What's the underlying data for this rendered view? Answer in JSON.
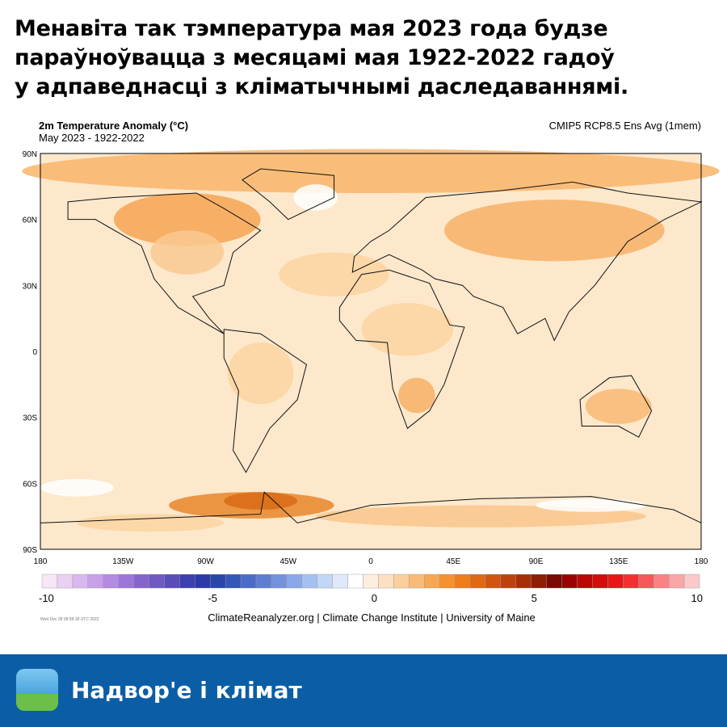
{
  "header": {
    "title_lines": [
      "Менавіта так тэмпература мая 2023 года будзе",
      "параўноўвацца з месяцамі мая 1922-2022 гадоў",
      "у адпаведнасці з кліматычнымі даследаваннямі."
    ]
  },
  "map": {
    "title": "2m Temperature Anomaly (°C)",
    "subtitle": "May 2023 - 1922-2022",
    "model": "CMIP5 RCP8.5 Ens Avg (1mem)",
    "lat_labels": [
      "90N",
      "60N",
      "30N",
      "0",
      "30S",
      "60S",
      "90S"
    ],
    "lon_labels": [
      "180",
      "135W",
      "90W",
      "45W",
      "0",
      "45E",
      "90E",
      "135E",
      "180"
    ],
    "colorbar_ticks": [
      -10,
      -5,
      0,
      5,
      10
    ],
    "timestamp": "Wed Dec 28 08:58:18 UTC 2022",
    "credit": "ClimateReanalyzer.org | Climate Change Institute | University of Maine"
  },
  "footer": {
    "brand": "Надвор'е і клімат"
  }
}
